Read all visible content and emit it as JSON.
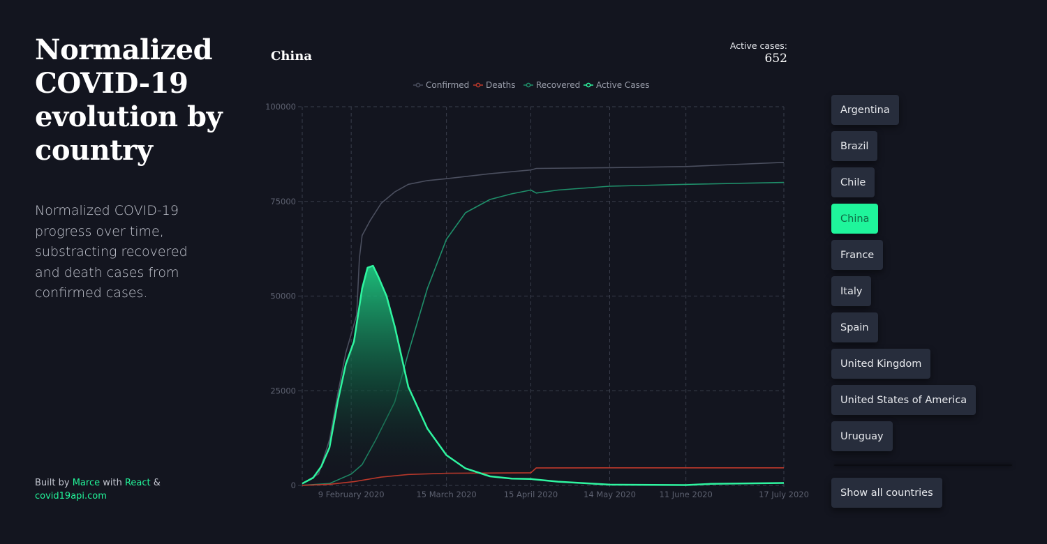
{
  "page": {
    "title": "Normalized COVID-19 evolution by country",
    "description": "Normalized COVID-19 progress over time, substracting recovered and death cases from confirmed cases.",
    "credits": {
      "prefix": "Built by",
      "author": "Marce",
      "middle": "with",
      "framework": "React",
      "suffix": "&",
      "api": "covid19api.com"
    }
  },
  "selected": {
    "country": "China",
    "active_label": "Active cases:",
    "active_value": "652"
  },
  "countries": [
    {
      "label": "Argentina",
      "active": false
    },
    {
      "label": "Brazil",
      "active": false
    },
    {
      "label": "Chile",
      "active": false
    },
    {
      "label": "China",
      "active": true
    },
    {
      "label": "France",
      "active": false
    },
    {
      "label": "Italy",
      "active": false
    },
    {
      "label": "Spain",
      "active": false
    },
    {
      "label": "United Kingdom",
      "active": false
    },
    {
      "label": "United States of America",
      "active": false
    },
    {
      "label": "Uruguay",
      "active": false
    }
  ],
  "show_all_label": "Show all countries",
  "colors": {
    "background": "#13151f",
    "accent": "#22f59a",
    "confirmed": "#4b4f5f",
    "deaths": "#c0392b",
    "recovered": "#1f8f6a",
    "active": "#2ff5a0"
  },
  "chart_data": {
    "type": "line",
    "title": "",
    "xlabel": "",
    "ylabel": "",
    "ylim": [
      0,
      100000
    ],
    "yticks": [
      0,
      25000,
      50000,
      75000,
      100000
    ],
    "x_start": "2020-01-22",
    "x_end": "2020-07-17",
    "xticks": [
      {
        "label": "9 February 2020",
        "date": "2020-02-09"
      },
      {
        "label": "15 March 2020",
        "date": "2020-03-15"
      },
      {
        "label": "15 April 2020",
        "date": "2020-04-15"
      },
      {
        "label": "14 May 2020",
        "date": "2020-05-14"
      },
      {
        "label": "11 June 2020",
        "date": "2020-06-11"
      },
      {
        "label": "17 July 2020",
        "date": "2020-07-17"
      }
    ],
    "grid": true,
    "legend_position": "top",
    "series": [
      {
        "name": "Confirmed",
        "color": "#4b4f5f",
        "marker": true,
        "points": [
          [
            "2020-01-22",
            500
          ],
          [
            "2020-01-28",
            3000
          ],
          [
            "2020-02-01",
            12000
          ],
          [
            "2020-02-04",
            24000
          ],
          [
            "2020-02-07",
            35000
          ],
          [
            "2020-02-09",
            40000
          ],
          [
            "2020-02-11",
            45000
          ],
          [
            "2020-02-12",
            60000
          ],
          [
            "2020-02-13",
            66000
          ],
          [
            "2020-02-16",
            70000
          ],
          [
            "2020-02-20",
            74500
          ],
          [
            "2020-02-25",
            77500
          ],
          [
            "2020-03-01",
            79500
          ],
          [
            "2020-03-08",
            80500
          ],
          [
            "2020-03-15",
            81000
          ],
          [
            "2020-03-31",
            82300
          ],
          [
            "2020-04-15",
            83300
          ],
          [
            "2020-04-17",
            83700
          ],
          [
            "2020-05-14",
            83900
          ],
          [
            "2020-06-11",
            84200
          ],
          [
            "2020-07-17",
            85300
          ]
        ]
      },
      {
        "name": "Deaths",
        "color": "#c0392b",
        "marker": true,
        "points": [
          [
            "2020-01-22",
            17
          ],
          [
            "2020-02-01",
            300
          ],
          [
            "2020-02-10",
            1000
          ],
          [
            "2020-02-20",
            2200
          ],
          [
            "2020-03-01",
            2900
          ],
          [
            "2020-03-15",
            3200
          ],
          [
            "2020-04-15",
            3340
          ],
          [
            "2020-04-17",
            4630
          ],
          [
            "2020-05-14",
            4633
          ],
          [
            "2020-07-17",
            4634
          ]
        ]
      },
      {
        "name": "Recovered",
        "color": "#1f8f6a",
        "marker": true,
        "points": [
          [
            "2020-01-22",
            28
          ],
          [
            "2020-02-01",
            500
          ],
          [
            "2020-02-09",
            3000
          ],
          [
            "2020-02-13",
            5500
          ],
          [
            "2020-02-18",
            12000
          ],
          [
            "2020-02-25",
            22000
          ],
          [
            "2020-03-01",
            35000
          ],
          [
            "2020-03-08",
            52000
          ],
          [
            "2020-03-15",
            65000
          ],
          [
            "2020-03-22",
            72000
          ],
          [
            "2020-03-31",
            75500
          ],
          [
            "2020-04-08",
            77000
          ],
          [
            "2020-04-15",
            78000
          ],
          [
            "2020-04-17",
            77200
          ],
          [
            "2020-04-25",
            78000
          ],
          [
            "2020-05-14",
            79000
          ],
          [
            "2020-06-11",
            79500
          ],
          [
            "2020-07-17",
            80000
          ]
        ]
      },
      {
        "name": "Active Cases",
        "color": "#2ff5a0",
        "marker": true,
        "area": true,
        "points": [
          [
            "2020-01-22",
            500
          ],
          [
            "2020-01-26",
            2000
          ],
          [
            "2020-01-29",
            5000
          ],
          [
            "2020-02-01",
            10000
          ],
          [
            "2020-02-04",
            22000
          ],
          [
            "2020-02-07",
            32000
          ],
          [
            "2020-02-10",
            38000
          ],
          [
            "2020-02-13",
            52000
          ],
          [
            "2020-02-15",
            57500
          ],
          [
            "2020-02-17",
            58000
          ],
          [
            "2020-02-19",
            55000
          ],
          [
            "2020-02-22",
            50000
          ],
          [
            "2020-02-25",
            42000
          ],
          [
            "2020-03-01",
            26000
          ],
          [
            "2020-03-08",
            15000
          ],
          [
            "2020-03-15",
            8000
          ],
          [
            "2020-03-22",
            4500
          ],
          [
            "2020-03-31",
            2400
          ],
          [
            "2020-04-08",
            1800
          ],
          [
            "2020-04-15",
            1700
          ],
          [
            "2020-04-25",
            1000
          ],
          [
            "2020-05-14",
            200
          ],
          [
            "2020-06-11",
            100
          ],
          [
            "2020-06-20",
            400
          ],
          [
            "2020-07-17",
            652
          ]
        ]
      }
    ]
  }
}
